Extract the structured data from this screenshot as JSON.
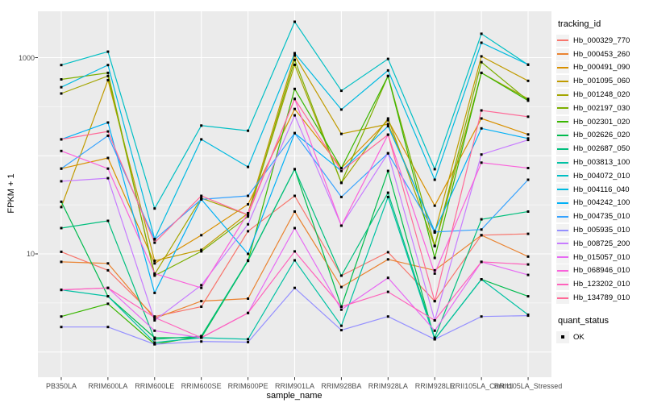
{
  "colors": {
    "background": "#ffffff",
    "panel": "#ebebeb",
    "grid": "#ffffff",
    "tick_label": "#4d4d4d",
    "axis_title": "#000000",
    "legend_key_fill": "#f2f2f2",
    "point": "#000000"
  },
  "chart_data": {
    "type": "line",
    "title": "",
    "xlabel": "sample_name",
    "ylabel": "FPKM + 1",
    "y_scale": "log10",
    "grid": "on",
    "legend_position": "right",
    "point_marker": "filled-black-square",
    "y_ticks": [
      {
        "value": 10,
        "label": "10"
      },
      {
        "value": 1000,
        "label": "1000"
      }
    ],
    "y_major_gridlines": [
      1,
      10,
      100,
      1000
    ],
    "y_minor_gridlines": [
      3.162,
      31.62,
      316.2
    ],
    "ylim": [
      0.56,
      2950
    ],
    "categories": [
      "PB350LA",
      "RRIM600LA",
      "RRIM600LE",
      "RRIM600SE",
      "RRIM600PE",
      "RRIM901LA",
      "RRIM928BA",
      "RRIM928LA",
      "RRIM928LE",
      "RRII105LA_Control",
      "RRII105LA_Stressed"
    ],
    "series": [
      {
        "name": "Hb_000329_770",
        "color": "#F8766D",
        "values": [
          10.5,
          6.8,
          2.3,
          2.9,
          17,
          39,
          6.0,
          10.4,
          3.3,
          15.5,
          16
        ]
      },
      {
        "name": "Hb_000453_260",
        "color": "#EA8331",
        "values": [
          8.3,
          8.0,
          2.2,
          3.3,
          3.5,
          27,
          4.6,
          8.8,
          6.8,
          15.5,
          9.4
        ]
      },
      {
        "name": "Hb_000491_090",
        "color": "#D89000",
        "values": [
          74,
          95,
          8.0,
          15.5,
          32,
          300,
          75,
          230,
          31,
          240,
          165
        ]
      },
      {
        "name": "Hb_001095_060",
        "color": "#C09B00",
        "values": [
          30,
          590,
          8.5,
          11,
          26,
          1050,
          167,
          210,
          16.5,
          1030,
          580
        ]
      },
      {
        "name": "Hb_001248_020",
        "color": "#A3A500",
        "values": [
          431,
          650,
          6.2,
          37,
          25,
          845,
          53,
          240,
          12,
          700,
          380
        ]
      },
      {
        "name": "Hb_002197_030",
        "color": "#7CAE00",
        "values": [
          600,
          700,
          6.0,
          10.6,
          24,
          950,
          53,
          650,
          12.1,
          900,
          365
        ]
      },
      {
        "name": "Hb_002301_020",
        "color": "#39B600",
        "values": [
          2.3,
          3.1,
          1.2,
          1.45,
          8.5,
          480,
          75,
          650,
          9.1,
          700,
          365
        ]
      },
      {
        "name": "Hb_002626_020",
        "color": "#00BB4E",
        "values": [
          34,
          3.7,
          1.4,
          1.4,
          8.5,
          73,
          2.9,
          70,
          1.35,
          5.5,
          3.7
        ]
      },
      {
        "name": "Hb_002687_050",
        "color": "#00BF7D",
        "values": [
          18.3,
          21.7,
          1.35,
          1.45,
          8.6,
          73,
          6.0,
          42,
          1.4,
          22.5,
          27
        ]
      },
      {
        "name": "Hb_003813_100",
        "color": "#00C1A3",
        "values": [
          4.3,
          3.7,
          1.25,
          1.4,
          1.35,
          8.6,
          1.85,
          38,
          1.35,
          5.5,
          2.4
        ]
      },
      {
        "name": "Hb_004072_010",
        "color": "#00BFC4",
        "values": [
          840,
          1150,
          29,
          203,
          180,
          2320,
          460,
          970,
          73,
          1750,
          845
        ]
      },
      {
        "name": "Hb_004116_040",
        "color": "#00BAE0",
        "values": [
          500,
          840,
          14.2,
          147,
          77,
          1110,
          296,
          740,
          57,
          1420,
          850
        ]
      },
      {
        "name": "Hb_004242_100",
        "color": "#00B0F6",
        "values": [
          147,
          218,
          4.0,
          36,
          10,
          170,
          70,
          200,
          17,
          190,
          150
        ]
      },
      {
        "name": "Hb_004735_010",
        "color": "#35A2FF",
        "values": [
          74,
          160,
          14,
          36,
          39,
          170,
          38,
          106,
          16.7,
          17.7,
          57
        ]
      },
      {
        "name": "Hb_005935_010",
        "color": "#9590FF",
        "values": [
          1.8,
          1.8,
          1.2,
          1.28,
          1.26,
          4.5,
          1.67,
          2.3,
          1.35,
          2.3,
          2.35
        ]
      },
      {
        "name": "Hb_008725_200",
        "color": "#C77CFF",
        "values": [
          55,
          59,
          2.1,
          4.8,
          20,
          258,
          19.4,
          106,
          2.1,
          103,
          145
        ]
      },
      {
        "name": "Hb_015057_010",
        "color": "#E76BF3",
        "values": [
          4.3,
          4.5,
          1.65,
          1.4,
          2.5,
          18.3,
          2.7,
          5.7,
          1.65,
          8.3,
          6.1
        ]
      },
      {
        "name": "Hb_068946_010",
        "color": "#FA62DB",
        "values": [
          112,
          74,
          6.3,
          4.5,
          26,
          380,
          19.4,
          164,
          6.3,
          85,
          75
        ]
      },
      {
        "name": "Hb_123202_010",
        "color": "#FF62BC",
        "values": [
          4.3,
          4.5,
          2.25,
          1.4,
          2.5,
          10.6,
          2.9,
          4.1,
          2.1,
          8.3,
          7.8
        ]
      },
      {
        "name": "Hb_134789_010",
        "color": "#FF6A98",
        "values": [
          147,
          177,
          13,
          39,
          25,
          380,
          70,
          164,
          3.3,
          290,
          250
        ]
      }
    ],
    "legend": {
      "tracking_title": "tracking_id",
      "quant_title": "quant_status",
      "quant_items": [
        {
          "label": "OK",
          "marker": "black-square"
        }
      ]
    }
  }
}
